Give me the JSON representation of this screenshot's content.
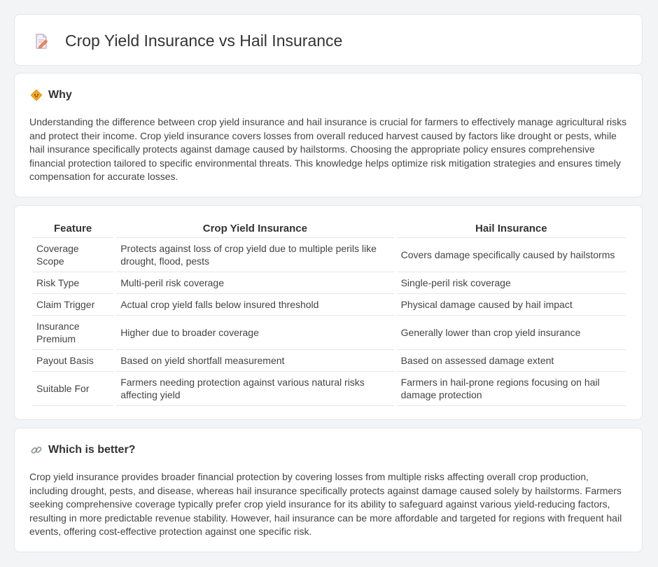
{
  "header": {
    "title": "Crop Yield Insurance vs Hail Insurance",
    "icon": "document-pencil-icon"
  },
  "why": {
    "heading": "Why",
    "icon": "diamond-sign-icon",
    "text": "Understanding the difference between crop yield insurance and hail insurance is crucial for farmers to effectively manage agricultural risks and protect their income. Crop yield insurance covers losses from overall reduced harvest caused by factors like drought or pests, while hail insurance specifically protects against damage caused by hailstorms. Choosing the appropriate policy ensures comprehensive financial protection tailored to specific environmental threats. This knowledge helps optimize risk mitigation strategies and ensures timely compensation for accurate losses."
  },
  "table": {
    "headers": [
      "Feature",
      "Crop Yield Insurance",
      "Hail Insurance"
    ],
    "rows": [
      [
        "Coverage Scope",
        "Protects against loss of crop yield due to multiple perils like drought, flood, pests",
        "Covers damage specifically caused by hailstorms"
      ],
      [
        "Risk Type",
        "Multi-peril risk coverage",
        "Single-peril risk coverage"
      ],
      [
        "Claim Trigger",
        "Actual crop yield falls below insured threshold",
        "Physical damage caused by hail impact"
      ],
      [
        "Insurance Premium",
        "Higher due to broader coverage",
        "Generally lower than crop yield insurance"
      ],
      [
        "Payout Basis",
        "Based on yield shortfall measurement",
        "Based on assessed damage extent"
      ],
      [
        "Suitable For",
        "Farmers needing protection against various natural risks affecting yield",
        "Farmers in hail-prone regions focusing on hail damage protection"
      ]
    ]
  },
  "better": {
    "heading": "Which is better?",
    "icon": "link-icon",
    "text": "Crop yield insurance provides broader financial protection by covering losses from multiple risks affecting overall crop production, including drought, pests, and disease, whereas hail insurance specifically protects against damage caused solely by hailstorms. Farmers seeking comprehensive coverage typically prefer crop yield insurance for its ability to safeguard against various yield-reducing factors, resulting in more predictable revenue stability. However, hail insurance can be more affordable and targeted for regions with frequent hail events, offering cost-effective protection against one specific risk."
  },
  "colors": {
    "background": "#f3f4f6",
    "card": "#ffffff",
    "accent_orange": "#f59e0b"
  }
}
